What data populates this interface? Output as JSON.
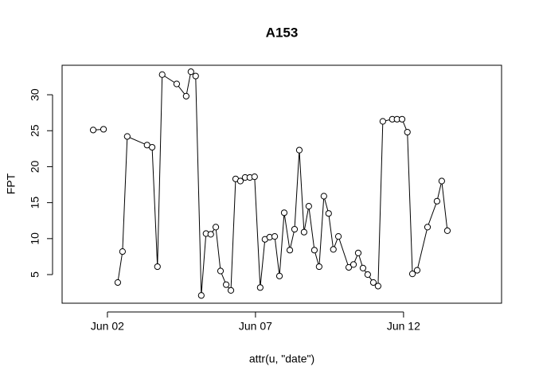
{
  "chart_data": {
    "type": "line",
    "title": "A153",
    "x_label": "attr(u, \"date\")",
    "y_label": "FPT",
    "x": [
      1.52,
      1.87,
      2.1,
      2.35,
      2.51,
      2.67,
      3.34,
      3.51,
      3.69,
      3.85,
      4.34,
      4.66,
      4.82,
      4.98,
      5.17,
      5.33,
      5.49,
      5.66,
      5.82,
      6.01,
      6.17,
      6.33,
      6.49,
      6.65,
      6.81,
      6.97,
      7.16,
      7.32,
      7.48,
      7.65,
      7.81,
      7.97,
      8.16,
      8.32,
      8.48,
      8.64,
      8.8,
      8.99,
      9.15,
      9.31,
      9.47,
      9.63,
      9.8,
      10.15,
      10.31,
      10.47,
      10.63,
      10.79,
      10.98,
      11.14,
      11.3,
      11.62,
      11.78,
      11.95,
      12.13,
      12.3,
      12.46,
      12.81,
      13.13,
      13.29,
      13.48
    ],
    "y": [
      25.1,
      25.2,
      null,
      3.9,
      8.2,
      24.2,
      23.0,
      22.7,
      6.1,
      32.8,
      31.5,
      29.8,
      33.2,
      32.6,
      2.1,
      10.7,
      10.6,
      11.6,
      5.5,
      3.6,
      2.8,
      18.3,
      18.0,
      18.5,
      18.5,
      18.6,
      3.2,
      9.9,
      10.2,
      10.3,
      4.8,
      13.6,
      8.4,
      11.3,
      22.3,
      10.9,
      14.5,
      8.4,
      6.1,
      15.9,
      13.5,
      8.5,
      10.3,
      6.0,
      6.4,
      8.0,
      5.9,
      5.0,
      3.9,
      3.4,
      26.3,
      26.6,
      26.6,
      26.6,
      24.8,
      5.1,
      5.6,
      11.6,
      15.2,
      18.0,
      11.1
    ],
    "color": "#000000",
    "xlim": [
      0.47,
      15.31
    ],
    "ylim": [
      1.02,
      34.1
    ],
    "xticks": [
      {
        "value": 2,
        "label": "Jun 02"
      },
      {
        "value": 7,
        "label": "Jun 07"
      },
      {
        "value": 12,
        "label": "Jun 12"
      }
    ],
    "yticks": [
      5,
      10,
      15,
      20,
      25,
      30
    ]
  }
}
